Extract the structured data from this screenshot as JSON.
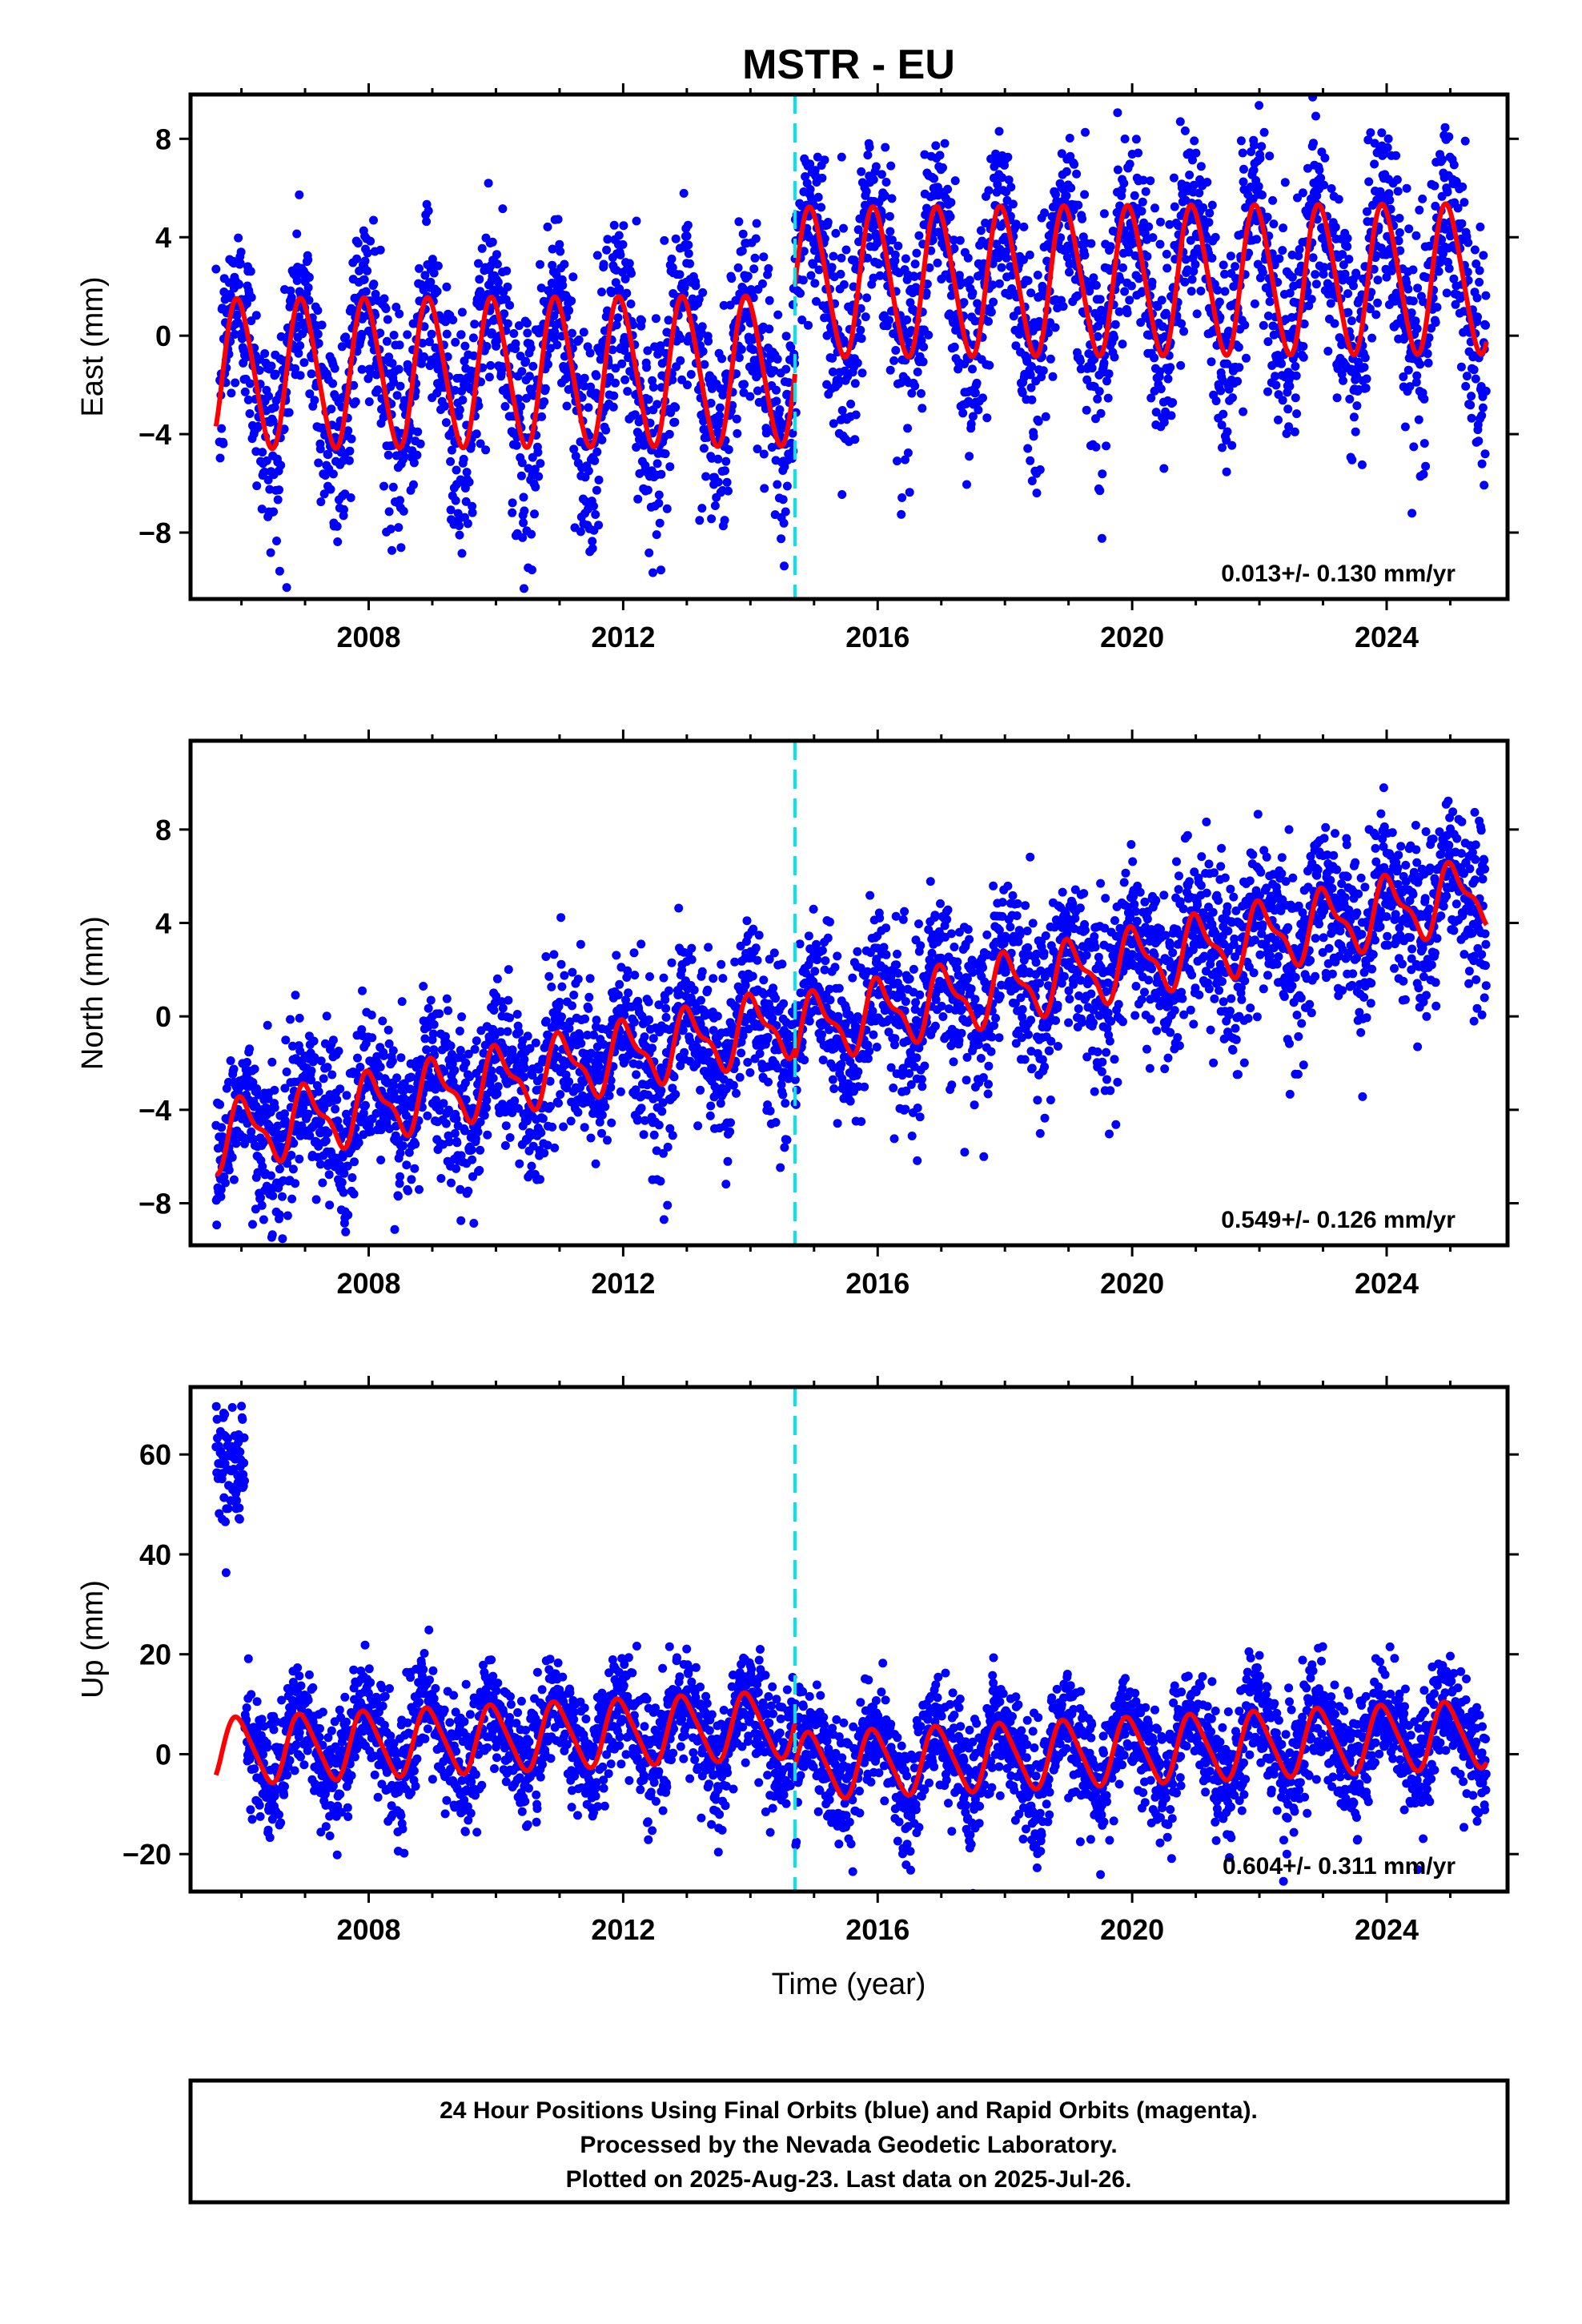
{
  "figure": {
    "title": "MSTR - EU",
    "xlabel": "Time (year)",
    "caption": [
      "24 Hour Positions Using Final Orbits (blue) and Rapid Orbits (magenta).",
      "Processed by the Nevada Geodetic Laboratory.",
      "Plotted on 2025-Aug-23. Last data on 2025-Jul-26."
    ]
  },
  "colors": {
    "data_points": "#0000ff",
    "model_fit": "#ff0000",
    "event_line": "#00e5ee",
    "frame": "#000000"
  },
  "chart_data": [
    {
      "type": "scatter",
      "ylabel": "East (mm)",
      "rate_text": "0.013+/- 0.130 mm/yr",
      "xlim": [
        2005.2,
        2025.9
      ],
      "ylim": [
        -10.7,
        9.8
      ],
      "x_ticks": [
        2008,
        2012,
        2016,
        2020,
        2024
      ],
      "y_ticks": [
        -8,
        -4,
        0,
        4,
        8
      ],
      "y_tick_labels": [
        "−8",
        "−4",
        "0",
        "4",
        "8"
      ],
      "event_x": 2014.7,
      "series": [
        {
          "role": "daily positions (final orbits)",
          "x_start": 2005.6,
          "x_end": 2025.57,
          "model": {
            "rate": 0.013,
            "annual_amp": 3.0,
            "annual_phase": 1.85,
            "semiannual_amp": 0.3,
            "offset_before": -1.55,
            "offset_after": 2.05,
            "scatter": 1.8
          }
        },
        {
          "role": "model fit",
          "model": {
            "rate": 0.013,
            "annual_amp": 3.0,
            "annual_phase": 1.85,
            "semiannual_amp": 0.3,
            "offset_before": -1.55,
            "offset_after": 2.05
          }
        }
      ]
    },
    {
      "type": "scatter",
      "ylabel": "North (mm)",
      "rate_text": "0.549+/- 0.126 mm/yr",
      "xlim": [
        2005.2,
        2025.9
      ],
      "ylim": [
        -9.8,
        11.8
      ],
      "x_ticks": [
        2008,
        2012,
        2016,
        2020,
        2024
      ],
      "y_ticks": [
        -8,
        -4,
        0,
        4,
        8
      ],
      "y_tick_labels": [
        "−8",
        "−4",
        "0",
        "4",
        "8"
      ],
      "event_x": 2014.7,
      "series": [
        {
          "role": "daily positions (final orbits)",
          "x_start": 2005.6,
          "x_end": 2025.57,
          "model": {
            "rate": 0.549,
            "annual_amp": 1.3,
            "annual_phase": 1.3,
            "semiannual_amp": 0.5,
            "offset_before": -5.2,
            "offset_after": -5.6,
            "scatter": 1.5
          }
        },
        {
          "role": "model fit",
          "model": {
            "rate": 0.549,
            "annual_amp": 1.3,
            "annual_phase": 1.3,
            "semiannual_amp": 0.5,
            "offset_before": -5.2,
            "offset_after": -5.6
          }
        }
      ]
    },
    {
      "type": "scatter",
      "ylabel": "Up (mm)",
      "rate_text": "0.604+/- 0.311 mm/yr",
      "xlim": [
        2005.2,
        2025.9
      ],
      "ylim": [
        -27.5,
        73.5
      ],
      "x_ticks": [
        2008,
        2012,
        2016,
        2020,
        2024
      ],
      "y_ticks": [
        -20,
        0,
        20,
        40,
        60
      ],
      "y_tick_labels": [
        "−20",
        "0",
        "20",
        "40",
        "60"
      ],
      "event_x": 2014.7,
      "series": [
        {
          "role": "daily positions (final orbits)",
          "x_start": 2005.6,
          "x_end": 2025.57,
          "model": {
            "rate": 0.604,
            "annual_amp": 6.5,
            "annual_phase": 1.9,
            "semiannual_amp": 1.0,
            "offset_before": 0.5,
            "offset_after": -8.0,
            "scatter": 5.0
          }
        },
        {
          "role": "model fit",
          "model": {
            "rate": 0.604,
            "annual_amp": 6.5,
            "annual_phase": 1.9,
            "semiannual_amp": 1.0,
            "offset_before": 0.5,
            "offset_after": -8.0
          }
        }
      ]
    }
  ]
}
